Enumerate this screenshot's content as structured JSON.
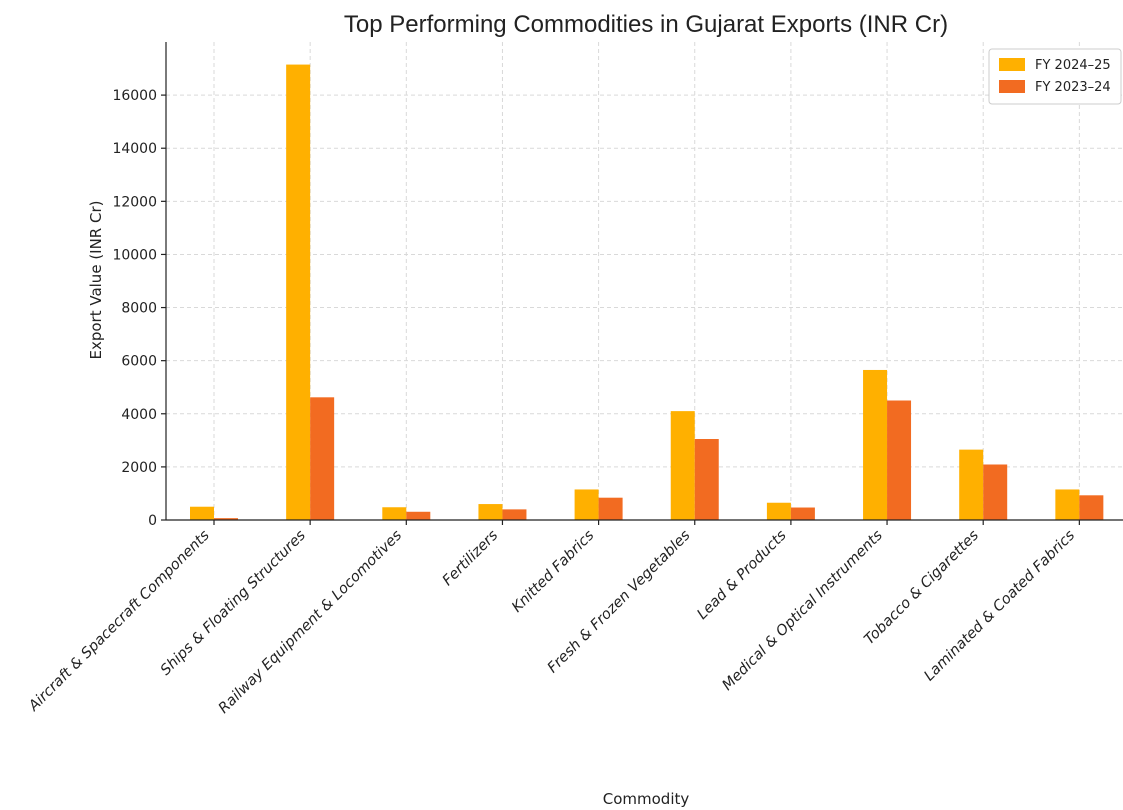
{
  "chart_data": {
    "type": "bar",
    "title": "Top Performing Commodities in Gujarat Exports (INR Cr)",
    "xlabel": "Commodity",
    "ylabel": "Export Value (INR Cr)",
    "ylim": [
      0,
      18000
    ],
    "yticks": [
      0,
      2000,
      4000,
      6000,
      8000,
      10000,
      12000,
      14000,
      16000
    ],
    "grid": true,
    "legend_position": "top-right",
    "categories": [
      "Aircraft & Spacecraft Components",
      "Ships & Floating Structures",
      "Railway Equipment & Locomotives",
      "Fertilizers",
      "Knitted Fabrics",
      "Fresh & Frozen Vegetables",
      "Lead & Products",
      "Medical & Optical Instruments",
      "Tobacco & Cigarettes",
      "Laminated & Coated Fabrics"
    ],
    "series": [
      {
        "name": "FY 2024–25",
        "color": "#FFB000",
        "values": [
          500,
          17150,
          480,
          600,
          1150,
          4100,
          650,
          5650,
          2650,
          1150
        ]
      },
      {
        "name": "FY 2023–24",
        "color": "#F26B21",
        "values": [
          70,
          4620,
          310,
          400,
          840,
          3050,
          470,
          4500,
          2090,
          930
        ]
      }
    ]
  }
}
